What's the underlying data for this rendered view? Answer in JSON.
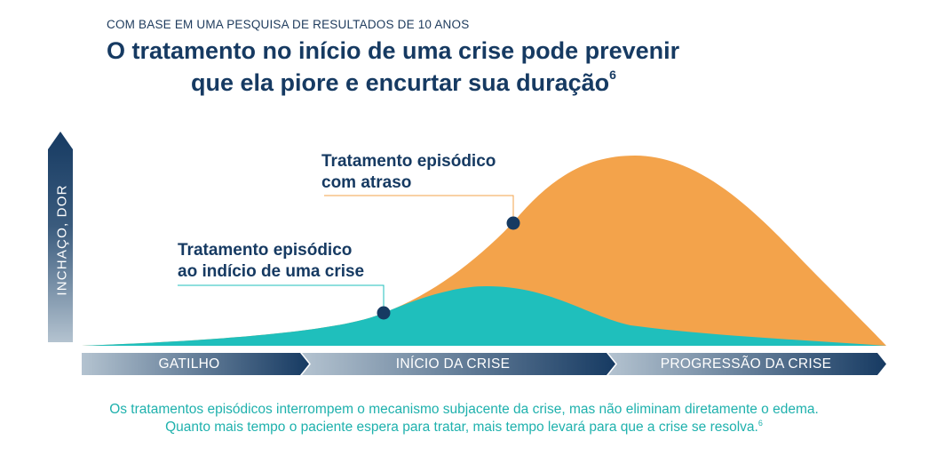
{
  "header": {
    "kicker": "COM BASE EM UMA PESQUISA DE RESULTADOS DE 10 ANOS",
    "title_line1": "O tratamento no início de uma crise pode prevenir",
    "title_line2": "que ela piore e encurtar sua duração",
    "title_ref": "6"
  },
  "y_axis": {
    "label": "INCHAÇO, DOR"
  },
  "curves": [
    {
      "name": "delayed-treatment-curve",
      "color": "#f3a34b"
    },
    {
      "name": "early-treatment-curve",
      "color": "#1fbfbc"
    }
  ],
  "callouts": {
    "delayed": {
      "line1": "Tratamento episódico",
      "line2": "com atraso",
      "marker_color": "#163a62",
      "line_color": "#f3a34b"
    },
    "early": {
      "line1": "Tratamento episódico",
      "line2": "ao indício de uma crise",
      "marker_color": "#163a62",
      "line_color": "#1fbfbc"
    }
  },
  "stages": [
    "GATILHO",
    "INÍCIO DA CRISE",
    "PROGRESSÃO DA CRISE"
  ],
  "footnote": {
    "line1": "Os tratamentos episódicos interrompem o mecanismo subjacente da crise, mas não eliminam diretamente o edema.",
    "line2": "Quanto mais tempo o paciente espera para tratar, mais tempo levará para que a crise se resolva.",
    "ref": "6"
  },
  "colors": {
    "navy": "#163a62",
    "teal": "#1fbfbc",
    "orange": "#f3a34b",
    "stage_light": "#b4c3d0"
  }
}
